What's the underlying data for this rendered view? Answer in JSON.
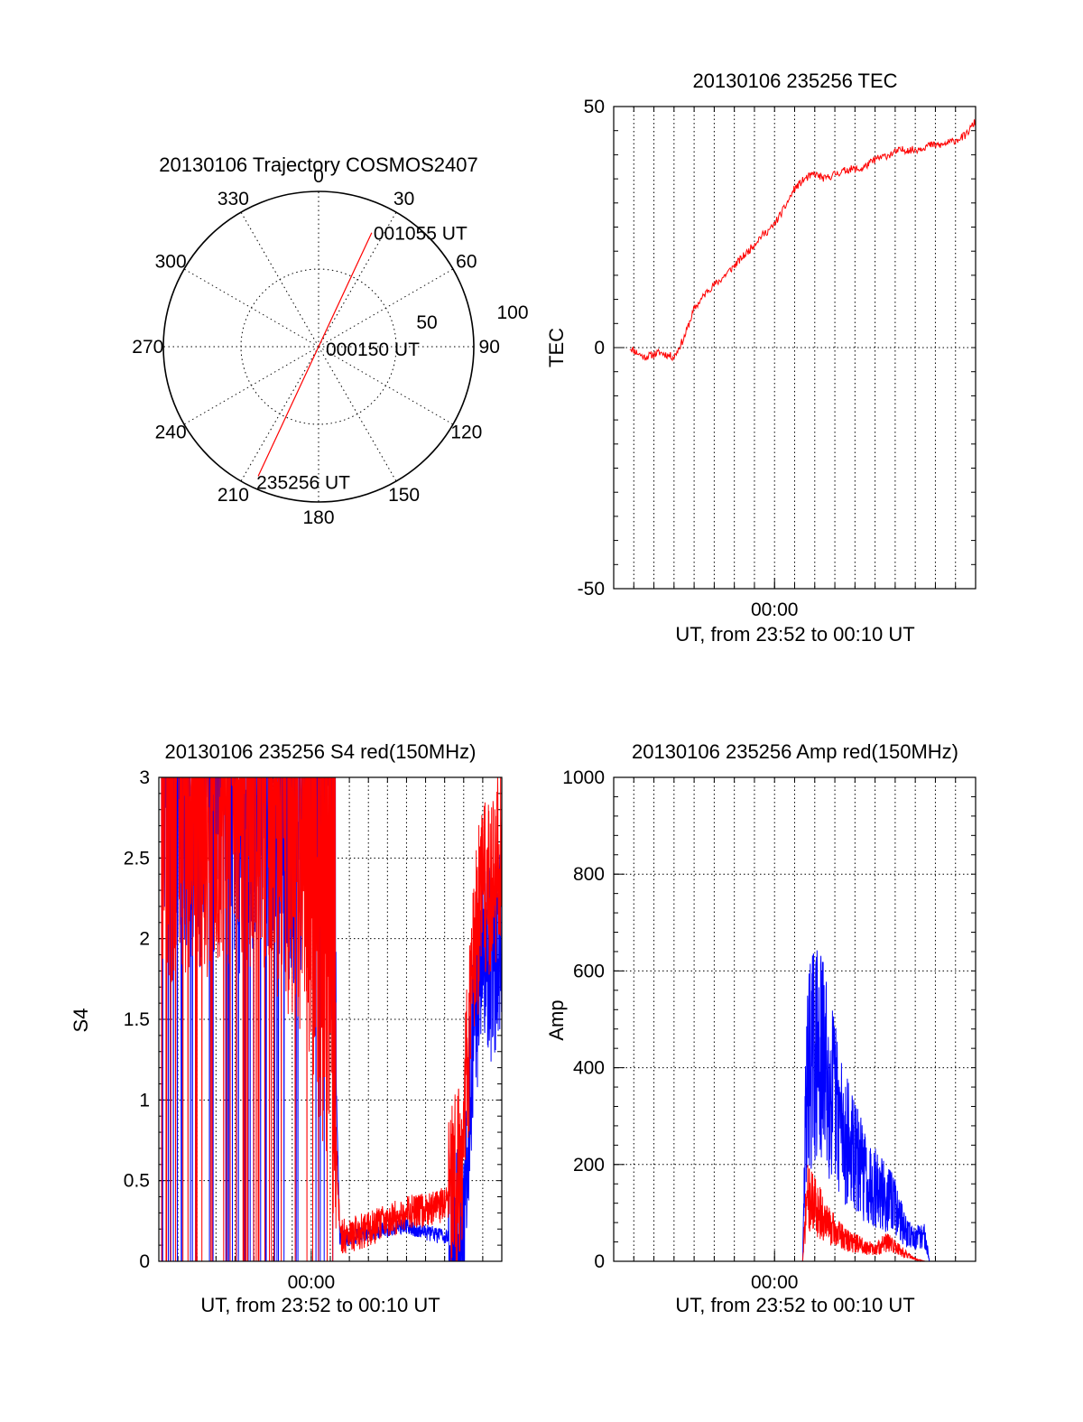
{
  "colors": {
    "red": "#ff0000",
    "blue": "#0000ff",
    "axis": "#000000",
    "grid": "#000000"
  },
  "chart_data": [
    {
      "id": "trajectory",
      "type": "polar",
      "title": "20130106 Trajectory COSMOS2407",
      "azimuth_labels": [
        "0",
        "30",
        "60",
        "90",
        "120",
        "150",
        "180",
        "210",
        "240",
        "270",
        "300",
        "330"
      ],
      "radius_labels": [
        "50",
        "100"
      ],
      "radius_max": 100,
      "grid": true,
      "track": {
        "start": {
          "label": "235256 UT",
          "azimuth": 205,
          "radius": 92
        },
        "mid": {
          "label": "000150 UT",
          "azimuth": 0,
          "radius": 0
        },
        "end": {
          "label": "001055 UT",
          "azimuth": 25,
          "radius": 81
        }
      }
    },
    {
      "id": "tec",
      "type": "line",
      "title": "20130106 235256 TEC",
      "ylabel": "TEC",
      "xlabel": "UT, from 23:52 to 00:10 UT",
      "xtick_labels": [
        "00:00"
      ],
      "ytick_labels": [
        "-50",
        "0",
        "50"
      ],
      "xlim": [
        0,
        18
      ],
      "ylim": [
        -50,
        50
      ],
      "grid": true,
      "series": [
        {
          "color": "red",
          "x": [
            0.8,
            1.5,
            2.3,
            3.0,
            3.5,
            4.0,
            4.7,
            5.3,
            6.0,
            6.7,
            7.3,
            7.9,
            8.5,
            9.0,
            9.5,
            10.0,
            10.5,
            11.0,
            11.7,
            12.3,
            13.0,
            13.7,
            14.3,
            15.0,
            15.7,
            16.3,
            17.0,
            17.5,
            18.0
          ],
          "y": [
            0,
            -2,
            -1,
            -2,
            2,
            8,
            12,
            14,
            17,
            20,
            23,
            25,
            29,
            33,
            35,
            36,
            35,
            36,
            37,
            37,
            39,
            40,
            41,
            41,
            42,
            42,
            43,
            44,
            47
          ]
        }
      ]
    },
    {
      "id": "s4",
      "type": "line",
      "title": "20130106 235256 S4 red(150MHz)",
      "ylabel": "S4",
      "xlabel": "UT, from 23:52 to 00:10 UT",
      "xtick_labels": [
        "00:00"
      ],
      "ytick_labels": [
        "0",
        "0.5",
        "1",
        "1.5",
        "2",
        "2.5",
        "3"
      ],
      "xlim": [
        0,
        18
      ],
      "ylim": [
        0,
        3
      ],
      "grid": true,
      "series": [
        {
          "color": "blue",
          "x": [
            0.1,
            1.0,
            2.0,
            3.0,
            4.0,
            5.0,
            6.0,
            7.0,
            8.0,
            9.0,
            9.5,
            10.0,
            11.0,
            12.0,
            13.0,
            14.0,
            15.0,
            15.5,
            16.0,
            16.5,
            17.0,
            17.5,
            18.0
          ],
          "y": [
            2.6,
            2.8,
            2.6,
            2.7,
            2.5,
            2.7,
            2.6,
            2.5,
            2.7,
            2.6,
            0.15,
            0.14,
            0.18,
            0.2,
            0.22,
            0.18,
            0.15,
            0.13,
            0.2,
            1.4,
            2.0,
            1.8,
            2.1
          ]
        },
        {
          "color": "red",
          "x": [
            0.1,
            1.0,
            2.0,
            3.0,
            4.0,
            5.0,
            6.0,
            7.0,
            8.0,
            8.5,
            9.0,
            9.3,
            9.5,
            10.0,
            11.0,
            12.0,
            13.0,
            14.0,
            15.0,
            15.5,
            16.0,
            16.5,
            17.0,
            17.5,
            18.0
          ],
          "y": [
            2.4,
            2.5,
            2.6,
            2.5,
            2.7,
            2.6,
            2.4,
            2.3,
            2.0,
            1.6,
            1.3,
            0.8,
            0.15,
            0.16,
            0.2,
            0.25,
            0.3,
            0.32,
            0.35,
            0.4,
            0.8,
            1.8,
            2.4,
            2.3,
            2.6
          ]
        }
      ]
    },
    {
      "id": "amp",
      "type": "line",
      "title": "20130106 235256 Amp red(150MHz)",
      "ylabel": "Amp",
      "xlabel": "UT, from 23:52 to 00:10 UT",
      "xtick_labels": [
        "00:00"
      ],
      "ytick_labels": [
        "0",
        "200",
        "400",
        "600",
        "800",
        "1000"
      ],
      "xlim": [
        0,
        18
      ],
      "ylim": [
        0,
        1000
      ],
      "grid": true,
      "series": [
        {
          "color": "blue",
          "x": [
            0.0,
            9.0,
            9.4,
            9.6,
            10.0,
            10.5,
            11.0,
            11.5,
            12.0,
            12.5,
            13.0,
            13.5,
            14.0,
            14.5,
            15.0,
            15.5,
            15.7,
            16.0,
            18.0
          ],
          "y": [
            0,
            0,
            0,
            500,
            560,
            520,
            430,
            330,
            280,
            230,
            200,
            170,
            150,
            80,
            60,
            70,
            0,
            0,
            0
          ]
        },
        {
          "color": "red",
          "x": [
            0.0,
            9.0,
            9.4,
            9.6,
            10.0,
            10.5,
            11.0,
            11.5,
            12.0,
            12.5,
            13.0,
            13.5,
            14.0,
            14.5,
            15.0,
            15.5,
            18.0
          ],
          "y": [
            0,
            0,
            0,
            170,
            150,
            110,
            80,
            60,
            50,
            40,
            30,
            50,
            40,
            20,
            5,
            0,
            0
          ]
        }
      ]
    }
  ]
}
